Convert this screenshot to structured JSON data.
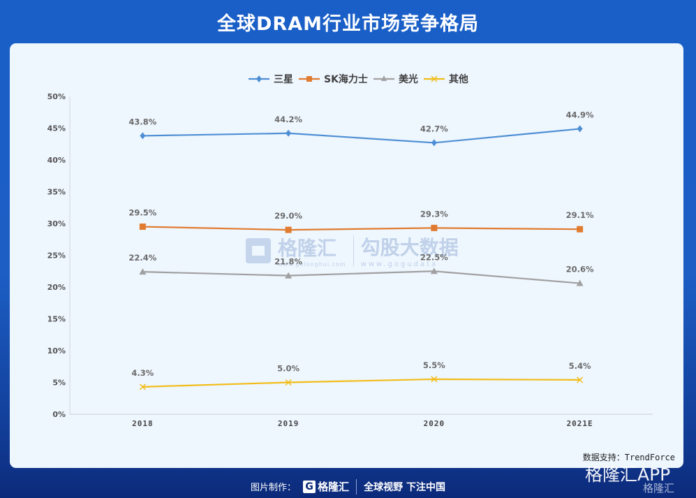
{
  "header": {
    "title": "全球DRAM行业市场竞争格局"
  },
  "legend": {
    "items": [
      {
        "label": "三星",
        "color": "#4e8fd4",
        "marker": "diamond"
      },
      {
        "label": "SK海力士",
        "color": "#e07b2f",
        "marker": "square"
      },
      {
        "label": "美光",
        "color": "#a0a0a0",
        "marker": "triangle"
      },
      {
        "label": "其他",
        "color": "#f2bd18",
        "marker": "x"
      }
    ]
  },
  "watermark": {
    "brand": "格隆汇",
    "brand_url": "www.gelonghui.com",
    "partner": "勾股大数据",
    "partner_url": "www.gogudata"
  },
  "source": {
    "text": "数据支持：TrendForce"
  },
  "footer": {
    "made_by_label": "图片制作：",
    "logo_text": "格隆汇",
    "slogan": "全球视野 下注中国",
    "app_watermark": "格隆汇APP",
    "app_watermark_small": "格隆汇"
  },
  "chart_data": {
    "type": "line",
    "title": "全球DRAM行业市场竞争格局",
    "xlabel": "",
    "ylabel": "",
    "categories": [
      "2018",
      "2019",
      "2020",
      "2021E"
    ],
    "y_ticks": [
      "0%",
      "5%",
      "10%",
      "15%",
      "20%",
      "25%",
      "30%",
      "35%",
      "40%",
      "45%",
      "50%"
    ],
    "ylim": [
      0,
      50
    ],
    "grid": false,
    "legend_position": "top",
    "series": [
      {
        "name": "三星",
        "color": "#4e8fd4",
        "marker": "diamond",
        "values": [
          43.8,
          44.2,
          42.7,
          44.9
        ],
        "labels": [
          "43.8%",
          "44.2%",
          "42.7%",
          "44.9%"
        ]
      },
      {
        "name": "SK海力士",
        "color": "#e07b2f",
        "marker": "square",
        "values": [
          29.5,
          29.0,
          29.3,
          29.1
        ],
        "labels": [
          "29.5%",
          "29.0%",
          "29.3%",
          "29.1%"
        ]
      },
      {
        "name": "美光",
        "color": "#a0a0a0",
        "marker": "triangle",
        "values": [
          22.4,
          21.8,
          22.5,
          20.6
        ],
        "labels": [
          "22.4%",
          "21.8%",
          "22.5%",
          "20.6%"
        ]
      },
      {
        "name": "其他",
        "color": "#f2bd18",
        "marker": "x",
        "values": [
          4.3,
          5.0,
          5.5,
          5.4
        ],
        "labels": [
          "4.3%",
          "5.0%",
          "5.5%",
          "5.4%"
        ]
      }
    ]
  }
}
